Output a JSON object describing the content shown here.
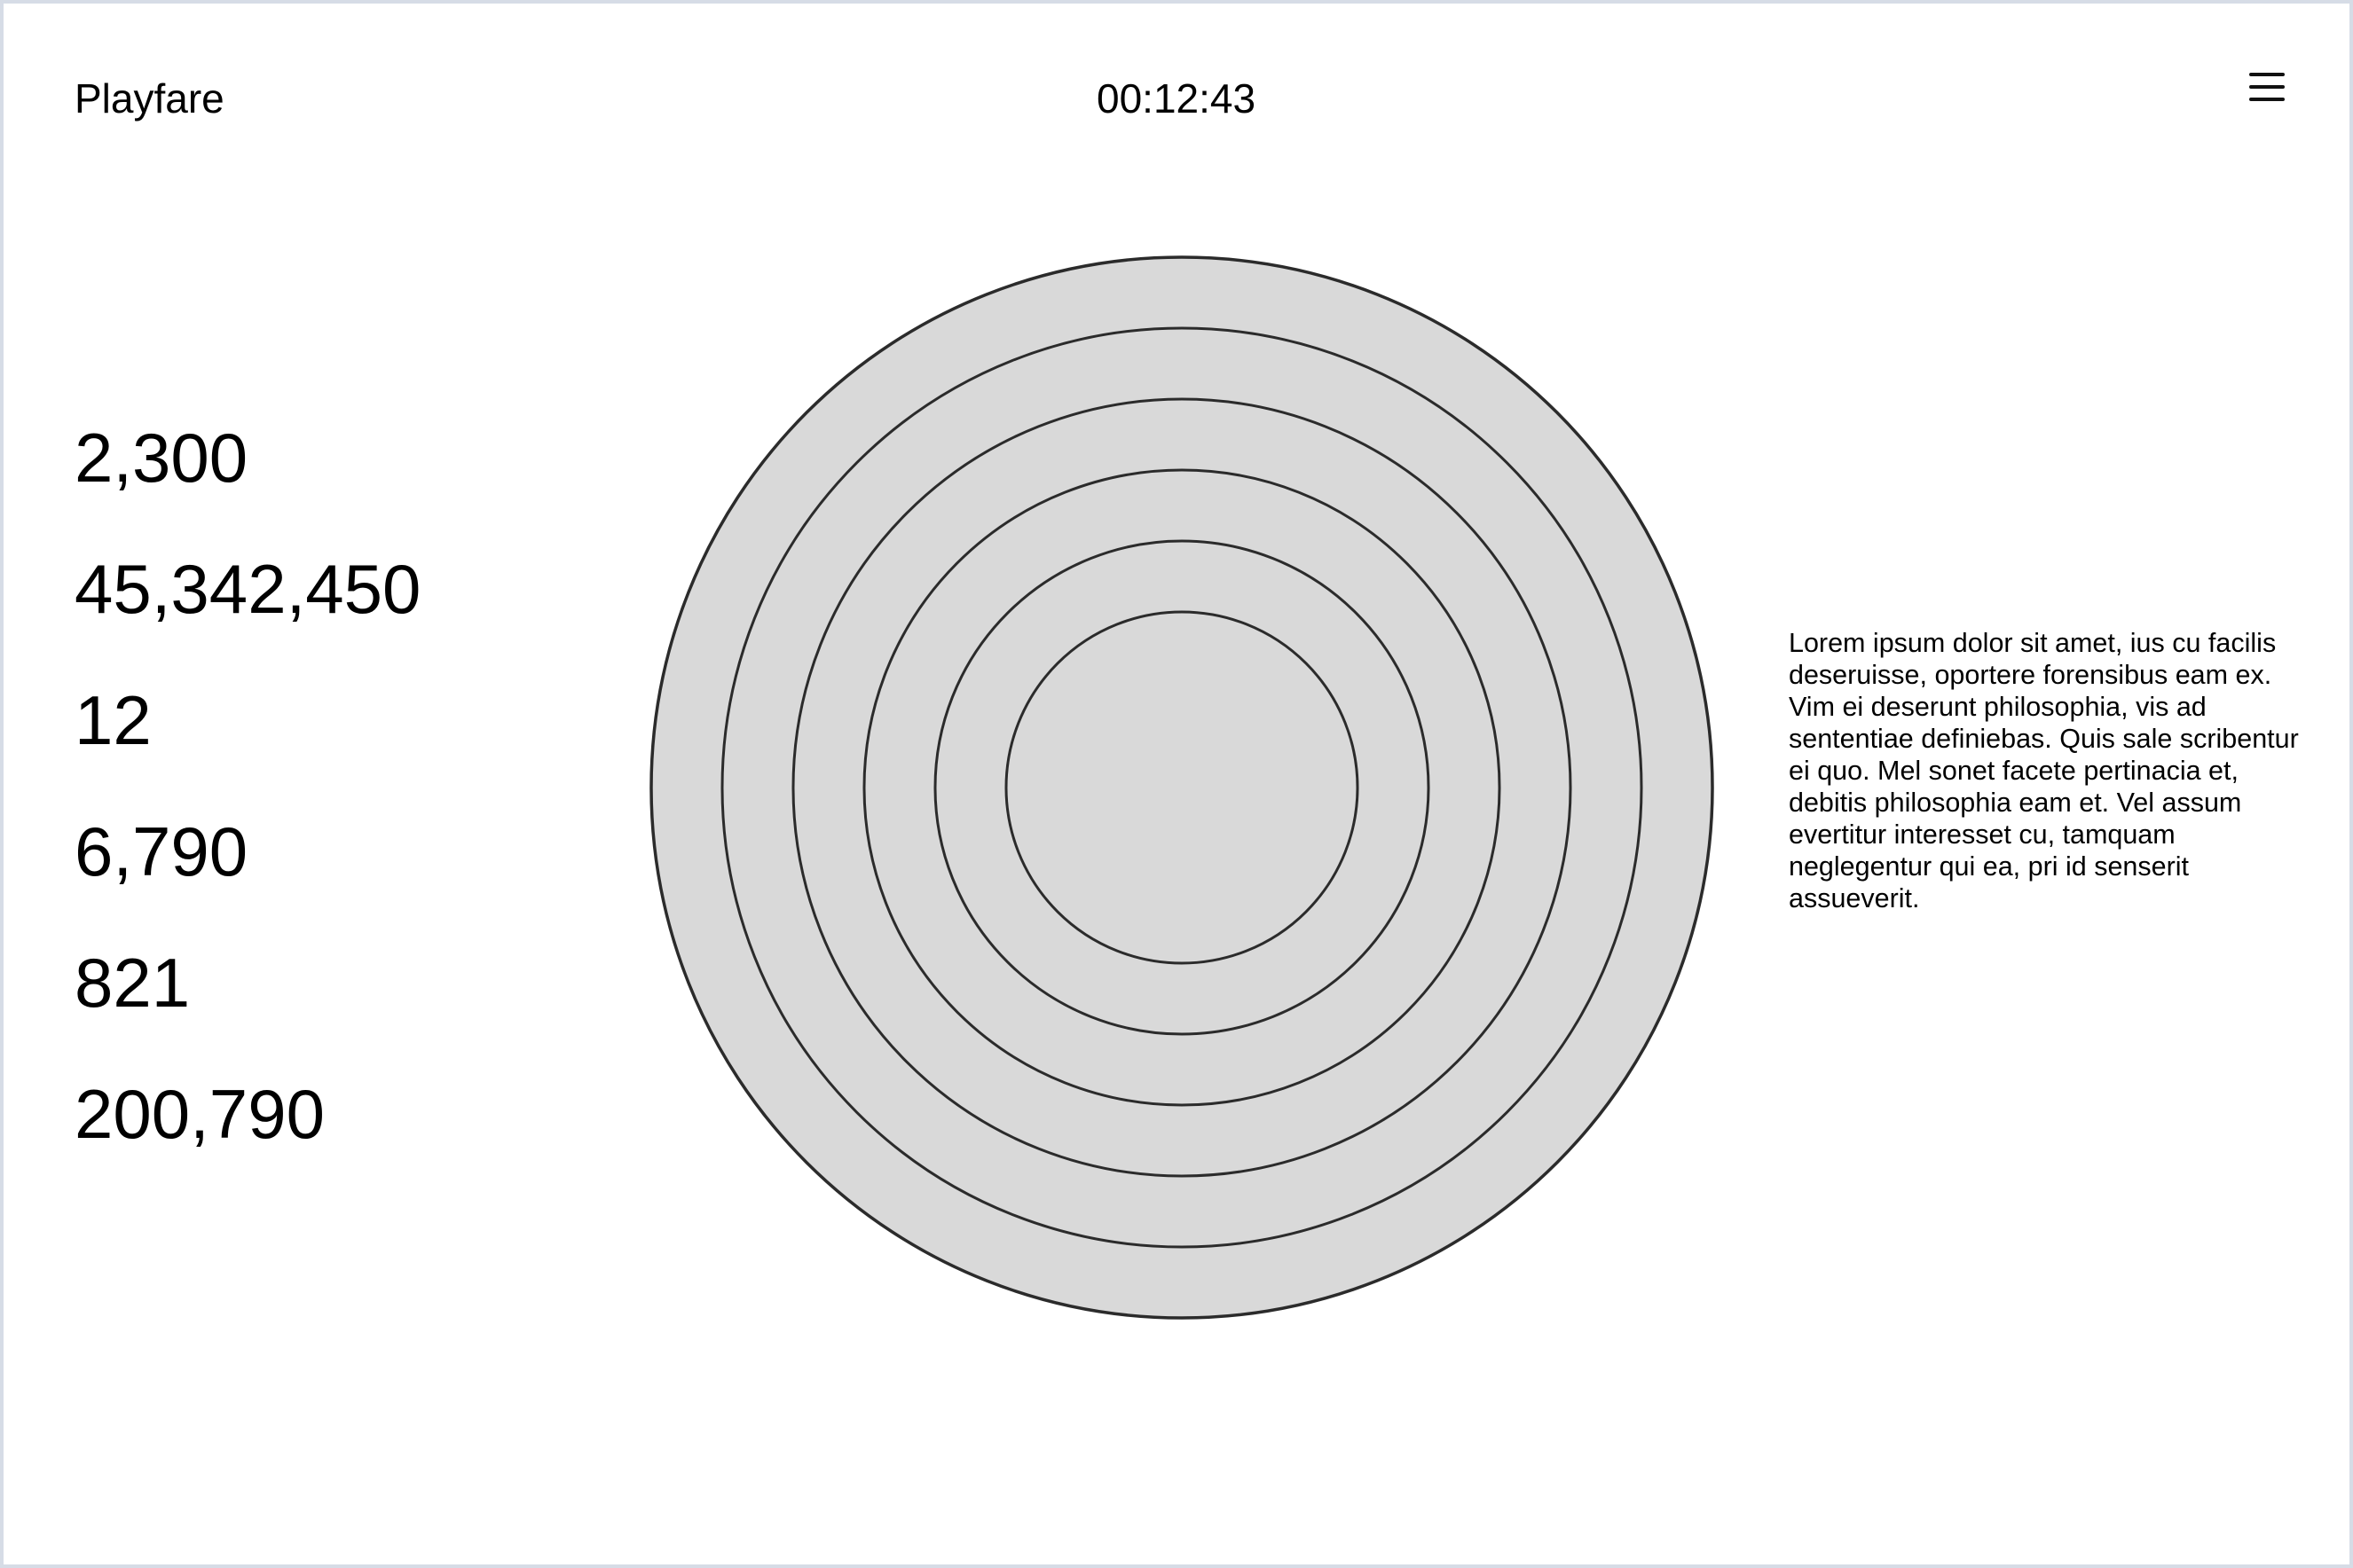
{
  "header": {
    "app_title": "Playfare",
    "timer": "00:12:43",
    "menu_icon": "hamburger-menu-icon"
  },
  "stats": [
    "2,300",
    "45,342,450",
    "12",
    "6,790",
    "821",
    "200,790"
  ],
  "target": {
    "ring_count": 6,
    "fill_color": "#d9d9d9",
    "stroke_color": "#2b2b2b"
  },
  "description": "Lorem ipsum dolor sit amet, ius cu facilis deseruisse, oportere forensibus eam ex. Vim ei deserunt philosophia, vis ad sententiae definiebas. Quis sale scribentur ei quo. Mel sonet facete pertinacia et, debitis philosophia eam et. Vel assum evertitur interesset cu, tamquam neglegentur qui ea, pri id senserit assueverit."
}
